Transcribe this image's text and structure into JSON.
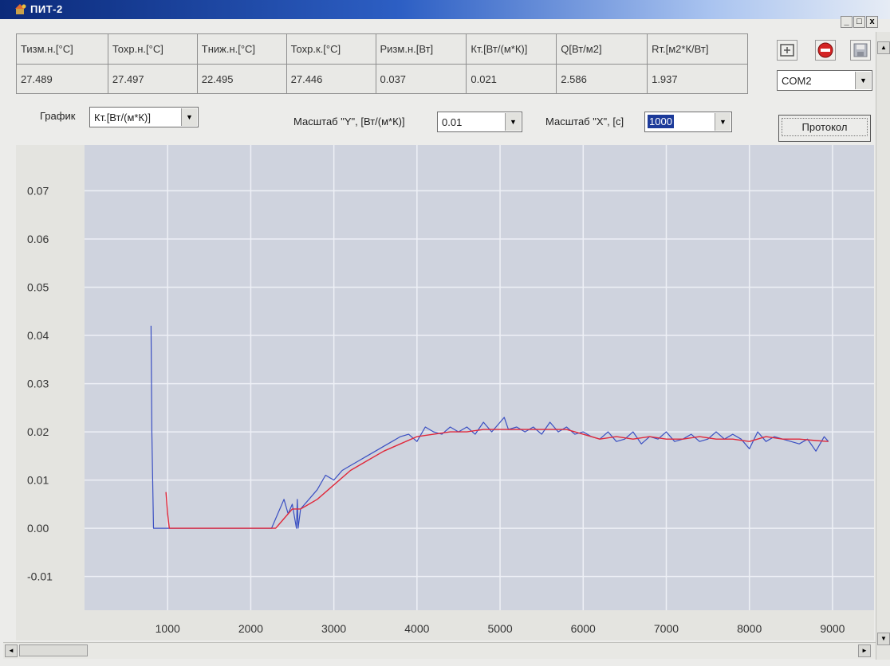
{
  "window": {
    "title": "ПИТ-2",
    "controls": [
      "_",
      "□",
      "x"
    ]
  },
  "readings": {
    "headers": [
      "Тизм.н.[°С]",
      "Тохр.н.[°С]",
      "Тниж.н.[°С]",
      "Тохр.к.[°С]",
      "Ризм.н.[Вт]",
      "Кт.[Вт/(м*К)]",
      "Q[Вт/м2]",
      "Rт.[м2*К/Вт]"
    ],
    "values": [
      "27.489",
      "27.497",
      "22.495",
      "27.446",
      "0.037",
      "0.021",
      "2.586",
      "1.937"
    ]
  },
  "toolbar": {
    "port_value": "COM2",
    "protocol_label": "Протокол"
  },
  "controls": {
    "graph_label": "График",
    "graph_value": "Кт.[Вт/(м*К)]",
    "scale_y_label": "Масштаб \"Y\", [Вт/(м*К)]",
    "scale_y_value": "0.01",
    "scale_x_label": "Масштаб \"X\", [c]",
    "scale_x_value": "1000"
  },
  "colors": {
    "plot_bg": "#cfd3de",
    "grid": "#eef0f6",
    "raw_series": "#3a4fc2",
    "smoothed_series": "#e0283a"
  },
  "chart_data": {
    "type": "line",
    "grid": true,
    "xlim": [
      0,
      9500
    ],
    "ylim": [
      -0.017,
      0.0795
    ],
    "x_ticks": [
      1000,
      2000,
      3000,
      4000,
      5000,
      6000,
      7000,
      8000,
      9000
    ],
    "y_ticks": [
      -0.01,
      0.0,
      0.01,
      0.02,
      0.03,
      0.04,
      0.05,
      0.06,
      0.07
    ],
    "y_tick_labels": [
      "-0.01",
      "0.00",
      "0.01",
      "0.02",
      "0.03",
      "0.04",
      "0.05",
      "0.06",
      "0.07"
    ],
    "series": [
      {
        "color": "#3a4fc2",
        "x": [
          800,
          810,
          830,
          1000,
          1500,
          2000,
          2250,
          2300,
          2350,
          2400,
          2450,
          2500,
          2550,
          2560,
          2570,
          2600,
          2700,
          2800,
          2900,
          3000,
          3100,
          3200,
          3300,
          3400,
          3500,
          3600,
          3700,
          3800,
          3900,
          4000,
          4100,
          4200,
          4300,
          4400,
          4500,
          4600,
          4700,
          4800,
          4900,
          5000,
          5050,
          5100,
          5200,
          5300,
          5400,
          5500,
          5600,
          5700,
          5800,
          5900,
          6000,
          6100,
          6200,
          6300,
          6400,
          6500,
          6600,
          6700,
          6800,
          6900,
          7000,
          7100,
          7200,
          7300,
          7400,
          7500,
          7600,
          7700,
          7800,
          7900,
          8000,
          8100,
          8200,
          8300,
          8400,
          8500,
          8600,
          8700,
          8800,
          8900,
          8950
        ],
        "y": [
          0.042,
          0.02,
          0.0,
          0.0,
          0.0,
          0.0,
          0.0,
          0.002,
          0.004,
          0.006,
          0.003,
          0.005,
          0.0,
          0.006,
          0.0,
          0.004,
          0.006,
          0.008,
          0.011,
          0.01,
          0.012,
          0.013,
          0.014,
          0.015,
          0.016,
          0.017,
          0.018,
          0.019,
          0.0195,
          0.018,
          0.021,
          0.02,
          0.0195,
          0.021,
          0.02,
          0.021,
          0.0195,
          0.022,
          0.02,
          0.022,
          0.023,
          0.0205,
          0.021,
          0.02,
          0.021,
          0.0195,
          0.022,
          0.02,
          0.021,
          0.0195,
          0.02,
          0.019,
          0.0185,
          0.02,
          0.018,
          0.0185,
          0.02,
          0.0175,
          0.019,
          0.0185,
          0.02,
          0.018,
          0.0185,
          0.0195,
          0.018,
          0.0185,
          0.02,
          0.0185,
          0.0195,
          0.0185,
          0.0165,
          0.02,
          0.018,
          0.019,
          0.0185,
          0.018,
          0.0175,
          0.0185,
          0.016,
          0.019,
          0.018
        ]
      },
      {
        "color": "#e0283a",
        "x": [
          980,
          1000,
          1020,
          2200,
          2300,
          2400,
          2500,
          2600,
          2700,
          2800,
          3000,
          3200,
          3400,
          3600,
          3800,
          4000,
          4200,
          4400,
          4600,
          4800,
          5000,
          5200,
          5400,
          5600,
          5800,
          6000,
          6200,
          6400,
          6600,
          6800,
          7000,
          7200,
          7400,
          7600,
          7800,
          8000,
          8200,
          8400,
          8600,
          8800,
          8950
        ],
        "y": [
          0.0075,
          0.003,
          0.0,
          0.0,
          0.0,
          0.002,
          0.004,
          0.004,
          0.005,
          0.006,
          0.009,
          0.012,
          0.014,
          0.016,
          0.0175,
          0.019,
          0.0195,
          0.02,
          0.02,
          0.0205,
          0.0205,
          0.0205,
          0.0205,
          0.0205,
          0.0205,
          0.0195,
          0.0185,
          0.019,
          0.0185,
          0.019,
          0.0185,
          0.0185,
          0.019,
          0.0185,
          0.0185,
          0.018,
          0.019,
          0.0185,
          0.0185,
          0.0182,
          0.018
        ]
      }
    ]
  }
}
